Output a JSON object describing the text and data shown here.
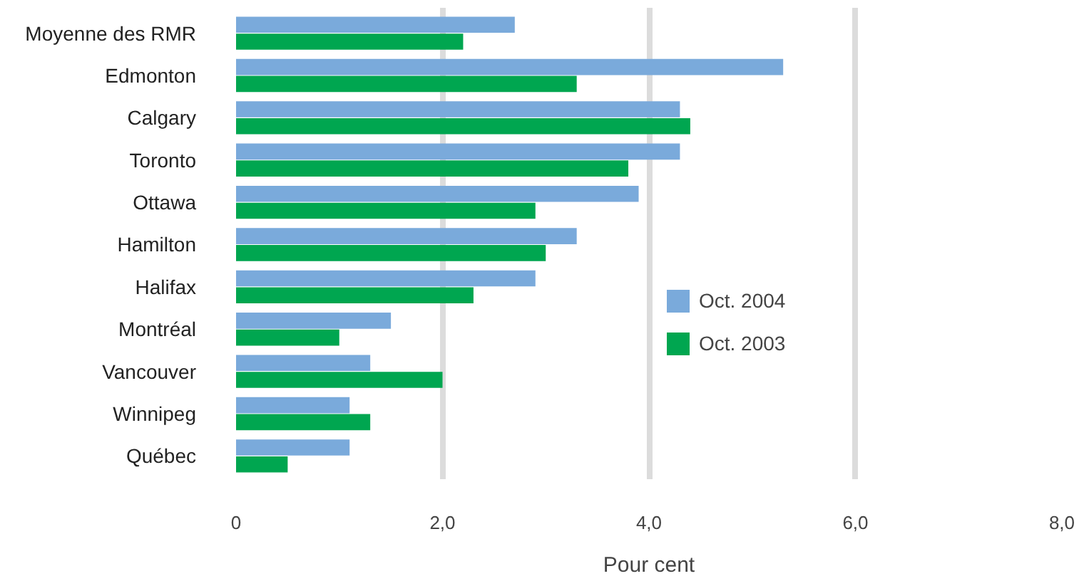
{
  "chart_data": {
    "type": "bar",
    "orientation": "horizontal",
    "xlabel": "Pour cent",
    "categories": [
      "Moyenne des RMR",
      "Edmonton",
      "Calgary",
      "Toronto",
      "Ottawa",
      "Hamilton",
      "Halifax",
      "Montréal",
      "Vancouver",
      "Winnipeg",
      "Québec"
    ],
    "series": [
      {
        "name": "Oct. 2004",
        "color": "#7aaadb",
        "values": [
          2.7,
          5.3,
          4.3,
          4.3,
          3.9,
          3.3,
          2.9,
          1.5,
          1.3,
          1.1,
          1.1
        ]
      },
      {
        "name": "Oct. 2003",
        "color": "#00a650",
        "values": [
          2.2,
          3.3,
          4.4,
          3.8,
          2.9,
          3.0,
          2.3,
          1.0,
          2.0,
          1.3,
          0.5
        ]
      }
    ],
    "xlim": [
      0,
      8
    ],
    "xticks": [
      0,
      {
        "value": 2,
        "label": "2,0"
      },
      {
        "value": 4,
        "label": "4,0"
      },
      {
        "value": 6,
        "label": "6,0"
      },
      {
        "value": 8,
        "label": "8,0"
      }
    ],
    "grid": "x",
    "legend": "right"
  }
}
